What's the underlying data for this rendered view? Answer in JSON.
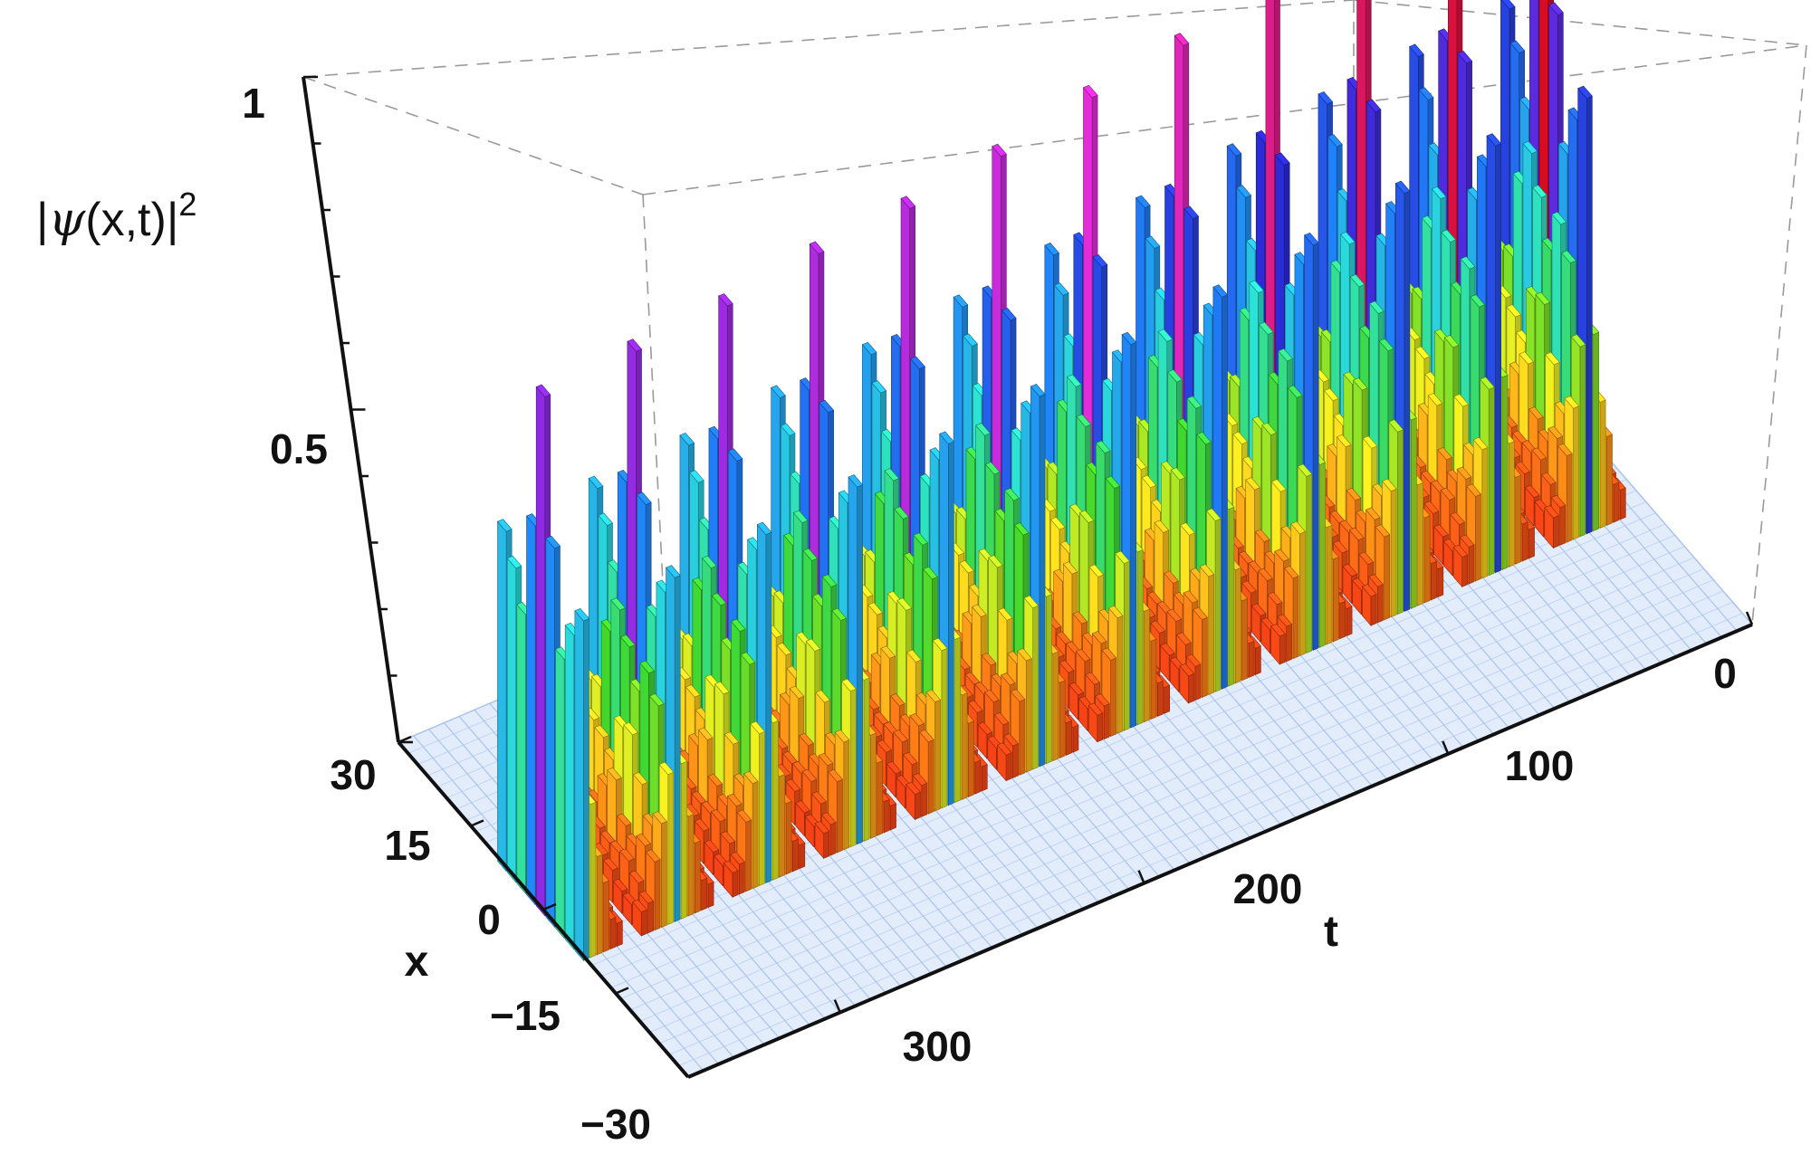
{
  "chart_data": {
    "type": "bar3d",
    "zlabel": "|ψ(x,t)|²",
    "zlabel_parts": {
      "left": "|",
      "psi": "ψ",
      "args": "(x,t)|",
      "sup": "2"
    },
    "xlabel": "x",
    "tlabel": "t",
    "x_range": [
      -30,
      30
    ],
    "t_range": [
      0,
      350
    ],
    "z_range": [
      0,
      1
    ],
    "x_ticks": [
      "30",
      "15",
      "0",
      "−15",
      "−30"
    ],
    "x_tick_values": [
      30,
      15,
      0,
      -15,
      -30
    ],
    "t_ticks": [
      "0",
      "100",
      "200",
      "300"
    ],
    "t_tick_values": [
      0,
      100,
      200,
      300
    ],
    "z_ticks": [
      "1",
      "0.5"
    ],
    "z_tick_values": [
      1,
      0.5
    ],
    "bar_x_positions": [
      -8,
      -6,
      -4,
      -2,
      0,
      2,
      4,
      6,
      8
    ],
    "peak_times": [
      20,
      50,
      80,
      110,
      140,
      170,
      200,
      230,
      260,
      290,
      320,
      350
    ],
    "peak_heights": [
      1.0,
      0.98,
      0.96,
      0.93,
      0.9,
      0.88,
      0.85,
      0.83,
      0.82,
      0.8,
      0.79,
      0.78
    ],
    "envelope_width": 11,
    "colormap": "Rainbow (height: red low → red high)",
    "base_color": "#a9c3f0",
    "box_style": "dashed"
  }
}
